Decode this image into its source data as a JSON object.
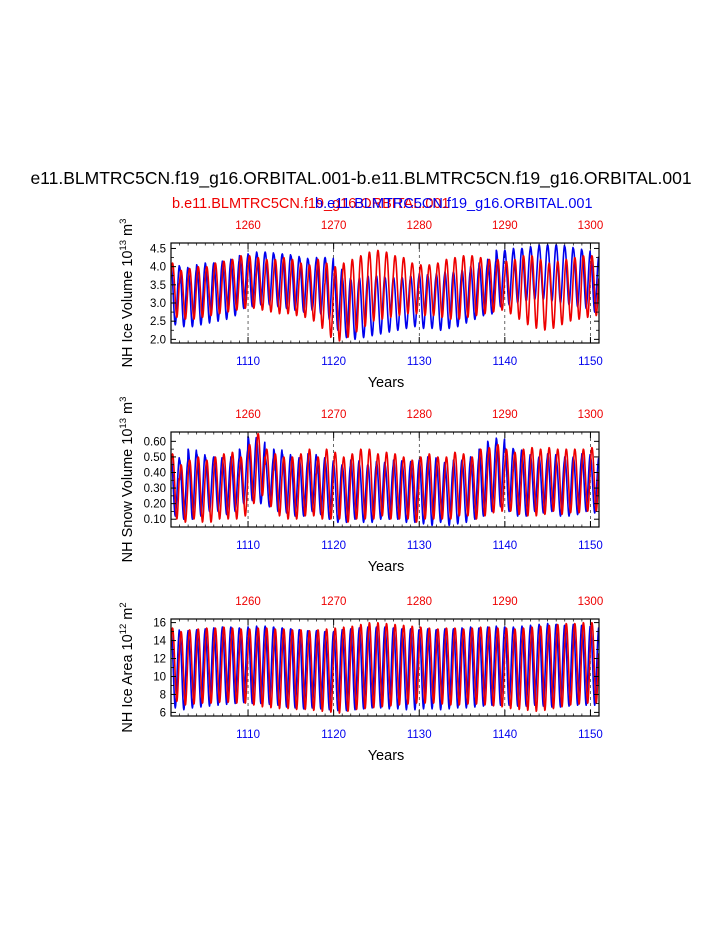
{
  "title": "e11.BLMTRC5CN.f19_g16.ORBITAL.001-b.e11.BLMTRC5CN.f19_g16.ORBITAL.001",
  "legend": {
    "red_label": "b.e11.BLMTRC5CN.f19_g16.ORBITAL.001",
    "blue_label": "b.e11.BLMTRC5CN.f19_g16.ORBITAL.001",
    "red_color": "#ee0000",
    "blue_color": "#0000ee"
  },
  "chart_data": [
    {
      "type": "line",
      "name": "ice-volume",
      "ylabel_main": "NH Ice Volume 10",
      "ylabel_sup": "13",
      "ylabel_unit": " m",
      "ylabel_unit_sup": "3",
      "xlabel": "Years",
      "ylim": [
        1.9,
        4.65
      ],
      "yticks": [
        2.0,
        2.5,
        3.0,
        3.5,
        4.0,
        4.5
      ],
      "ytick_labels": [
        "2.0",
        "2.5",
        "3.0",
        "3.5",
        "4.0",
        "4.5"
      ],
      "xlim_bottom": [
        1101,
        1151
      ],
      "xticks_bottom": [
        1110,
        1120,
        1130,
        1140,
        1150
      ],
      "xlim_top": [
        1251,
        1301
      ],
      "xticks_top": [
        1260,
        1270,
        1280,
        1290,
        1300
      ],
      "series": [
        {
          "name": "b.e11.BLMTRC5CN.f19_g16.ORBITAL.001 (blue, bottom axis years)",
          "color": "#0000ee",
          "annual_max": [
            4.05,
            4.0,
            3.95,
            4.05,
            4.1,
            4.1,
            4.15,
            4.2,
            4.3,
            4.35,
            4.4,
            4.4,
            4.35,
            4.35,
            4.3,
            4.25,
            4.2,
            4.25,
            4.25,
            3.95,
            3.7,
            3.65,
            3.7,
            3.75,
            3.75,
            3.7,
            3.7,
            3.7,
            3.75,
            3.8,
            3.75,
            3.8,
            3.85,
            3.85,
            3.9,
            4.0,
            4.1,
            4.2,
            4.45,
            4.45,
            4.5,
            4.5,
            4.55,
            4.6,
            4.6,
            4.6,
            4.55,
            4.5,
            4.45,
            4.3
          ],
          "annual_min": [
            2.4,
            2.35,
            2.35,
            2.4,
            2.45,
            2.5,
            2.55,
            2.65,
            2.85,
            2.9,
            2.95,
            2.95,
            2.9,
            2.85,
            2.8,
            2.75,
            2.8,
            2.7,
            2.55,
            2.25,
            2.05,
            2.0,
            2.05,
            2.1,
            2.15,
            2.2,
            2.25,
            2.3,
            2.35,
            2.3,
            2.3,
            2.25,
            2.3,
            2.35,
            2.45,
            2.55,
            2.65,
            2.7,
            2.9,
            2.95,
            3.0,
            3.05,
            3.1,
            3.1,
            3.05,
            3.0,
            2.95,
            2.9,
            2.85,
            2.75
          ]
        },
        {
          "name": "b.e11.BLMTRC5CN.f19_g16.ORBITAL.001 (red, top axis years)",
          "color": "#ee0000",
          "annual_max": [
            4.1,
            3.9,
            3.95,
            4.0,
            4.0,
            4.1,
            4.15,
            4.2,
            4.3,
            4.3,
            4.25,
            4.2,
            4.2,
            4.25,
            4.2,
            4.1,
            4.05,
            4.2,
            4.1,
            4.0,
            4.1,
            4.2,
            4.3,
            4.4,
            4.45,
            4.4,
            4.3,
            4.25,
            4.1,
            4.05,
            4.05,
            4.1,
            4.2,
            4.25,
            4.3,
            4.3,
            4.25,
            4.2,
            4.2,
            4.15,
            4.2,
            4.3,
            4.3,
            4.2,
            4.1,
            4.15,
            4.2,
            4.25,
            4.3,
            4.3
          ],
          "annual_min": [
            2.6,
            2.55,
            2.55,
            2.6,
            2.65,
            2.7,
            2.75,
            2.8,
            2.85,
            2.85,
            2.8,
            2.75,
            2.7,
            2.7,
            2.65,
            2.6,
            2.5,
            2.3,
            2.05,
            1.95,
            2.05,
            2.2,
            2.35,
            2.5,
            2.55,
            2.6,
            2.65,
            2.7,
            2.7,
            2.65,
            2.65,
            2.6,
            2.55,
            2.55,
            2.6,
            2.65,
            2.7,
            2.75,
            2.8,
            2.7,
            2.55,
            2.4,
            2.3,
            2.25,
            2.3,
            2.4,
            2.5,
            2.55,
            2.6,
            2.65
          ]
        }
      ]
    },
    {
      "type": "line",
      "name": "snow-volume",
      "ylabel_main": "NH Snow Volume 10",
      "ylabel_sup": "13",
      "ylabel_unit": " m",
      "ylabel_unit_sup": "3",
      "xlabel": "Years",
      "ylim": [
        0.05,
        0.66
      ],
      "yticks": [
        0.1,
        0.2,
        0.3,
        0.4,
        0.5,
        0.6
      ],
      "ytick_labels": [
        "0.10",
        "0.20",
        "0.30",
        "0.40",
        "0.50",
        "0.60"
      ],
      "xlim_bottom": [
        1101,
        1151
      ],
      "xticks_bottom": [
        1110,
        1120,
        1130,
        1140,
        1150
      ],
      "xlim_top": [
        1251,
        1301
      ],
      "xticks_top": [
        1260,
        1270,
        1280,
        1290,
        1300
      ],
      "series": [
        {
          "name": "blue",
          "color": "#0000ee",
          "annual_max": [
            0.5,
            0.48,
            0.55,
            0.52,
            0.5,
            0.5,
            0.48,
            0.5,
            0.55,
            0.63,
            0.6,
            0.5,
            0.55,
            0.52,
            0.5,
            0.48,
            0.52,
            0.5,
            0.48,
            0.45,
            0.45,
            0.48,
            0.45,
            0.45,
            0.47,
            0.45,
            0.48,
            0.46,
            0.47,
            0.48,
            0.5,
            0.47,
            0.45,
            0.48,
            0.48,
            0.5,
            0.55,
            0.6,
            0.62,
            0.56,
            0.55,
            0.52,
            0.5,
            0.5,
            0.52,
            0.48,
            0.5,
            0.5,
            0.52,
            0.5
          ],
          "annual_min": [
            0.12,
            0.1,
            0.1,
            0.12,
            0.15,
            0.15,
            0.13,
            0.15,
            0.2,
            0.22,
            0.2,
            0.18,
            0.15,
            0.14,
            0.12,
            0.12,
            0.15,
            0.13,
            0.1,
            0.08,
            0.08,
            0.1,
            0.08,
            0.08,
            0.1,
            0.1,
            0.1,
            0.08,
            0.08,
            0.07,
            0.06,
            0.08,
            0.06,
            0.07,
            0.08,
            0.1,
            0.12,
            0.15,
            0.18,
            0.15,
            0.12,
            0.12,
            0.15,
            0.14,
            0.15,
            0.12,
            0.12,
            0.13,
            0.15,
            0.14
          ]
        },
        {
          "name": "red",
          "color": "#ee0000",
          "annual_max": [
            0.52,
            0.45,
            0.48,
            0.5,
            0.48,
            0.5,
            0.52,
            0.53,
            0.5,
            0.58,
            0.65,
            0.55,
            0.52,
            0.5,
            0.5,
            0.52,
            0.55,
            0.5,
            0.55,
            0.53,
            0.5,
            0.52,
            0.55,
            0.55,
            0.52,
            0.53,
            0.52,
            0.5,
            0.48,
            0.5,
            0.52,
            0.5,
            0.5,
            0.53,
            0.52,
            0.5,
            0.55,
            0.56,
            0.58,
            0.55,
            0.53,
            0.55,
            0.56,
            0.55,
            0.56,
            0.55,
            0.55,
            0.55,
            0.55,
            0.56
          ],
          "annual_min": [
            0.1,
            0.08,
            0.1,
            0.08,
            0.08,
            0.1,
            0.1,
            0.1,
            0.12,
            0.2,
            0.25,
            0.18,
            0.12,
            0.1,
            0.1,
            0.12,
            0.12,
            0.1,
            0.1,
            0.1,
            0.08,
            0.1,
            0.1,
            0.1,
            0.12,
            0.1,
            0.1,
            0.1,
            0.08,
            0.1,
            0.1,
            0.1,
            0.1,
            0.12,
            0.12,
            0.1,
            0.12,
            0.14,
            0.15,
            0.15,
            0.13,
            0.12,
            0.12,
            0.13,
            0.15,
            0.13,
            0.14,
            0.14,
            0.15,
            0.15
          ]
        }
      ]
    },
    {
      "type": "line",
      "name": "ice-area",
      "ylabel_main": "NH Ice Area 10",
      "ylabel_sup": "12",
      "ylabel_unit": " m",
      "ylabel_unit_sup": "2",
      "xlabel": "Years",
      "ylim": [
        5.6,
        16.4
      ],
      "yticks": [
        6,
        8,
        10,
        12,
        14,
        16
      ],
      "ytick_labels": [
        "6",
        "8",
        "10",
        "12",
        "14",
        "16"
      ],
      "xlim_bottom": [
        1101,
        1151
      ],
      "xticks_bottom": [
        1110,
        1120,
        1130,
        1140,
        1150
      ],
      "xlim_top": [
        1251,
        1301
      ],
      "xticks_top": [
        1260,
        1270,
        1280,
        1290,
        1300
      ],
      "series": [
        {
          "name": "blue",
          "color": "#0000ee",
          "annual_max": [
            15.3,
            15.0,
            15.1,
            15.2,
            15.3,
            15.4,
            15.5,
            15.5,
            15.4,
            15.5,
            15.6,
            15.6,
            15.5,
            15.4,
            15.3,
            15.2,
            15.1,
            15.1,
            15.0,
            15.0,
            15.2,
            15.3,
            15.4,
            15.5,
            15.5,
            15.5,
            15.4,
            15.3,
            15.3,
            15.2,
            15.3,
            15.2,
            15.3,
            15.3,
            15.4,
            15.5,
            15.4,
            15.5,
            15.6,
            15.5,
            15.5,
            15.6,
            15.7,
            15.8,
            15.9,
            15.8,
            15.7,
            15.8,
            15.7,
            15.6
          ],
          "annual_min": [
            6.5,
            6.3,
            6.5,
            6.6,
            6.7,
            6.8,
            6.9,
            7.0,
            7.1,
            7.0,
            7.0,
            6.9,
            6.8,
            6.6,
            6.5,
            6.4,
            6.5,
            6.4,
            6.3,
            6.2,
            6.2,
            6.3,
            6.4,
            6.5,
            6.5,
            6.4,
            6.4,
            6.3,
            6.3,
            6.4,
            6.4,
            6.3,
            6.4,
            6.5,
            6.5,
            6.6,
            6.7,
            6.8,
            6.8,
            6.8,
            6.7,
            6.7,
            6.8,
            6.7,
            6.6,
            6.6,
            6.7,
            6.8,
            6.8,
            6.8
          ]
        },
        {
          "name": "red",
          "color": "#ee0000",
          "annual_max": [
            15.4,
            15.0,
            15.2,
            15.3,
            15.4,
            15.4,
            15.5,
            15.4,
            15.3,
            15.3,
            15.4,
            15.4,
            15.3,
            15.3,
            15.2,
            15.2,
            15.1,
            15.2,
            15.3,
            15.4,
            15.5,
            15.6,
            15.8,
            16.0,
            16.0,
            15.9,
            15.8,
            15.7,
            15.6,
            15.5,
            15.4,
            15.3,
            15.4,
            15.4,
            15.3,
            15.4,
            15.5,
            15.5,
            15.4,
            15.4,
            15.3,
            15.4,
            15.5,
            15.6,
            15.7,
            15.8,
            15.9,
            15.9,
            16.0,
            16.0
          ],
          "annual_min": [
            7.2,
            6.8,
            6.9,
            7.0,
            7.0,
            7.1,
            7.1,
            7.0,
            7.0,
            6.8,
            6.6,
            6.5,
            6.4,
            6.4,
            6.3,
            6.3,
            6.2,
            6.1,
            6.0,
            5.9,
            6.1,
            6.3,
            6.4,
            6.5,
            6.6,
            6.7,
            6.8,
            6.9,
            7.0,
            7.0,
            7.0,
            6.9,
            6.8,
            6.8,
            6.9,
            6.9,
            6.8,
            6.7,
            6.6,
            6.4,
            6.3,
            6.2,
            6.1,
            6.2,
            6.4,
            6.6,
            6.8,
            6.9,
            7.0,
            7.0
          ]
        }
      ]
    }
  ]
}
